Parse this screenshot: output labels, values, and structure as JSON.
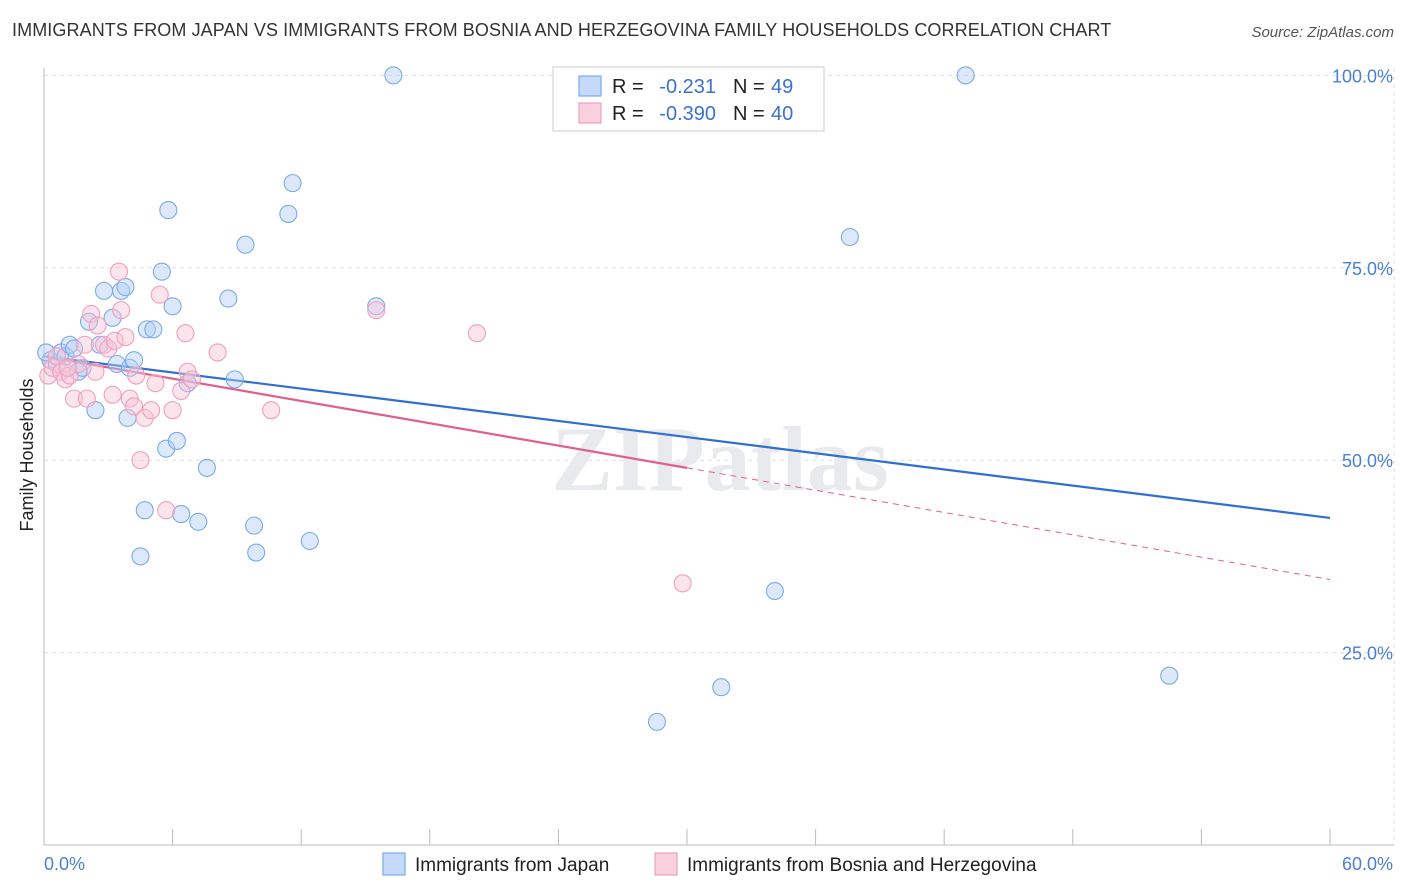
{
  "title": "IMMIGRANTS FROM JAPAN VS IMMIGRANTS FROM BOSNIA AND HERZEGOVINA FAMILY HOUSEHOLDS CORRELATION CHART",
  "source": "Source: ZipAtlas.com",
  "watermark": "ZIPatlas",
  "colors": {
    "japan": "#7aaae8",
    "japan_line": "#2f6fd0",
    "bosnia": "#f0a0bc",
    "bosnia_line": "#e0608a",
    "tick": "#4a7fd4",
    "grid": "#dddddd"
  },
  "legend": {
    "r_label": "R =",
    "n_label": "N =",
    "rows": [
      {
        "r": "-0.231",
        "n": "49"
      },
      {
        "r": "-0.390",
        "n": "40"
      }
    ]
  },
  "bottom_legend": [
    "Immigrants from Japan",
    "Immigrants from Bosnia and Herzegovina"
  ],
  "chart_data": {
    "type": "scatter",
    "title": "IMMIGRANTS FROM JAPAN VS IMMIGRANTS FROM BOSNIA AND HERZEGOVINA FAMILY HOUSEHOLDS CORRELATION CHART",
    "xlabel": "",
    "ylabel": "Family Households",
    "xlim": [
      0,
      60
    ],
    "ylim": [
      0,
      102
    ],
    "x_tick_labels": [
      "0.0%",
      "60.0%"
    ],
    "y_ticks": [
      25,
      50,
      75,
      100
    ],
    "y_tick_labels": [
      "25.0%",
      "50.0%",
      "75.0%",
      "100.0%"
    ],
    "grid": true,
    "legend_position": "top-center",
    "series": [
      {
        "name": "Immigrants from Japan",
        "stats": {
          "R": -0.231,
          "N": 49
        },
        "trend": {
          "x": [
            0,
            60
          ],
          "y": [
            63.5,
            42.5
          ],
          "dashed_from": null
        },
        "points": [
          [
            0.3,
            63.0
          ],
          [
            0.6,
            62.5
          ],
          [
            0.8,
            64.0
          ],
          [
            1.0,
            63.5
          ],
          [
            1.2,
            65.0
          ],
          [
            1.4,
            64.5
          ],
          [
            1.6,
            61.5
          ],
          [
            1.8,
            62.0
          ],
          [
            2.1,
            68.0
          ],
          [
            2.4,
            56.5
          ],
          [
            2.6,
            65.0
          ],
          [
            2.8,
            72.0
          ],
          [
            3.2,
            68.5
          ],
          [
            3.4,
            62.5
          ],
          [
            3.6,
            72.0
          ],
          [
            3.8,
            72.5
          ],
          [
            3.9,
            55.5
          ],
          [
            4.0,
            62.0
          ],
          [
            4.2,
            63.0
          ],
          [
            4.7,
            43.5
          ],
          [
            4.8,
            67.0
          ],
          [
            5.1,
            67.0
          ],
          [
            5.5,
            74.5
          ],
          [
            5.7,
            51.5
          ],
          [
            5.8,
            82.5
          ],
          [
            6.0,
            70.0
          ],
          [
            6.2,
            52.5
          ],
          [
            6.4,
            43.0
          ],
          [
            6.7,
            60.0
          ],
          [
            7.2,
            42.0
          ],
          [
            7.6,
            49.0
          ],
          [
            8.6,
            71.0
          ],
          [
            8.9,
            60.5
          ],
          [
            9.4,
            78.0
          ],
          [
            9.8,
            41.5
          ],
          [
            9.9,
            38.0
          ],
          [
            11.4,
            82.0
          ],
          [
            11.6,
            86.0
          ],
          [
            12.4,
            39.5
          ],
          [
            15.5,
            70.0
          ],
          [
            16.3,
            100.0
          ],
          [
            28.6,
            16.0
          ],
          [
            31.6,
            20.5
          ],
          [
            34.1,
            33.0
          ],
          [
            37.6,
            79.0
          ],
          [
            43.0,
            100.0
          ],
          [
            52.5,
            22.0
          ],
          [
            4.5,
            37.5
          ],
          [
            0.1,
            64.0
          ]
        ]
      },
      {
        "name": "Immigrants from Bosnia and Herzegovina",
        "stats": {
          "R": -0.39,
          "N": 40
        },
        "trend": {
          "x": [
            0,
            60
          ],
          "y": [
            63.5,
            34.5
          ],
          "dashed_from": 30
        },
        "points": [
          [
            0.2,
            61.0
          ],
          [
            0.4,
            62.0
          ],
          [
            0.6,
            63.5
          ],
          [
            0.8,
            61.5
          ],
          [
            1.0,
            60.5
          ],
          [
            1.2,
            61.0
          ],
          [
            1.4,
            58.0
          ],
          [
            1.6,
            62.5
          ],
          [
            1.9,
            65.0
          ],
          [
            2.0,
            58.0
          ],
          [
            2.2,
            69.0
          ],
          [
            2.4,
            61.5
          ],
          [
            2.5,
            67.5
          ],
          [
            2.8,
            65.0
          ],
          [
            3.0,
            64.5
          ],
          [
            3.2,
            58.5
          ],
          [
            3.3,
            65.5
          ],
          [
            3.5,
            74.5
          ],
          [
            3.6,
            69.5
          ],
          [
            3.8,
            66.0
          ],
          [
            4.0,
            58.0
          ],
          [
            4.2,
            57.0
          ],
          [
            4.3,
            61.0
          ],
          [
            4.5,
            50.0
          ],
          [
            4.7,
            55.5
          ],
          [
            5.0,
            56.5
          ],
          [
            5.2,
            60.0
          ],
          [
            5.4,
            71.5
          ],
          [
            5.7,
            43.5
          ],
          [
            6.0,
            56.5
          ],
          [
            6.4,
            59.0
          ],
          [
            6.6,
            66.5
          ],
          [
            6.7,
            61.5
          ],
          [
            6.9,
            60.5
          ],
          [
            8.1,
            64.0
          ],
          [
            10.6,
            56.5
          ],
          [
            15.5,
            69.5
          ],
          [
            20.2,
            66.5
          ],
          [
            29.8,
            34.0
          ],
          [
            1.1,
            62.0
          ]
        ]
      }
    ]
  }
}
